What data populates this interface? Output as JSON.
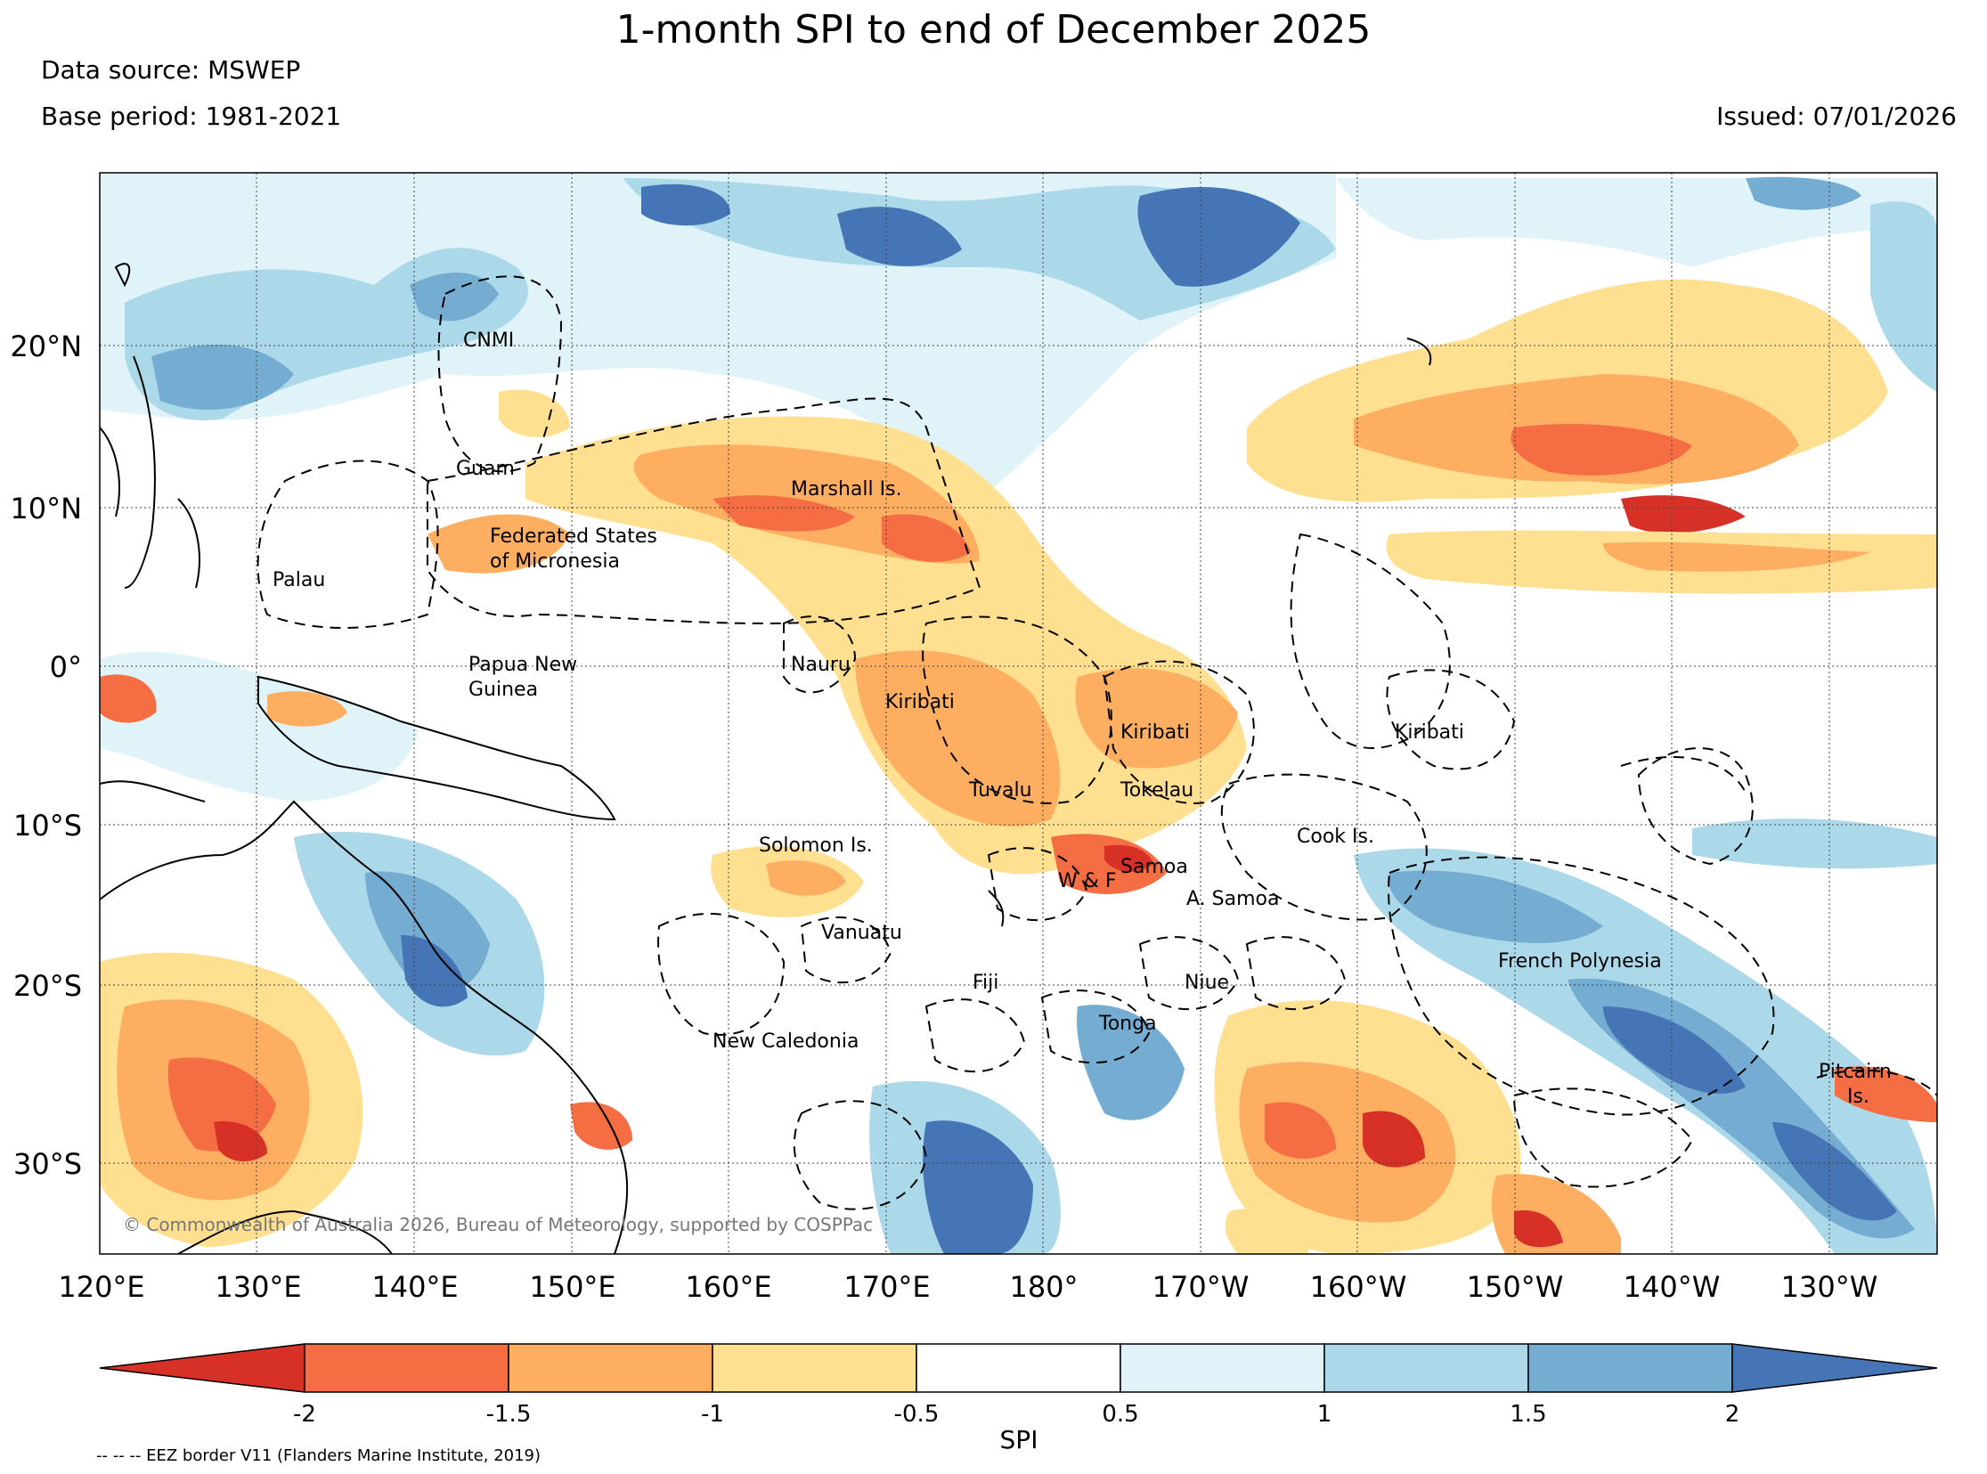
{
  "header": {
    "title": "1-month SPI to end of December 2025",
    "data_source": "Data source: MSWEP",
    "base_period": "Base period: 1981-2021",
    "issued": "Issued: 07/01/2026"
  },
  "map": {
    "lon_labels": [
      "120°E",
      "130°E",
      "140°E",
      "150°E",
      "160°E",
      "170°E",
      "180°",
      "170°W",
      "160°W",
      "150°W",
      "140°W",
      "130°W"
    ],
    "lat_labels": [
      "20°N",
      "10°N",
      "0°",
      "10°S",
      "20°S",
      "30°S"
    ],
    "places": [
      {
        "id": "cnmi",
        "text": "CNMI"
      },
      {
        "id": "guam",
        "text": "Guam"
      },
      {
        "id": "marshall",
        "text": "Marshall Is."
      },
      {
        "id": "fsm1",
        "text": "Federated States"
      },
      {
        "id": "fsm2",
        "text": "of Micronesia"
      },
      {
        "id": "palau",
        "text": "Palau"
      },
      {
        "id": "png1",
        "text": "Papua New"
      },
      {
        "id": "png2",
        "text": "Guinea"
      },
      {
        "id": "nauru",
        "text": "Nauru"
      },
      {
        "id": "kiribati-w",
        "text": "Kiribati"
      },
      {
        "id": "kiribati-c",
        "text": "Kiribati"
      },
      {
        "id": "kiribati-e",
        "text": "Kiribati"
      },
      {
        "id": "tuvalu",
        "text": "Tuvalu"
      },
      {
        "id": "tokelau",
        "text": "Tokelau"
      },
      {
        "id": "solomon",
        "text": "Solomon Is."
      },
      {
        "id": "cook",
        "text": "Cook Is."
      },
      {
        "id": "wf",
        "text": "W & F"
      },
      {
        "id": "samoa",
        "text": "Samoa"
      },
      {
        "id": "asamoa",
        "text": "A. Samoa"
      },
      {
        "id": "vanuatu",
        "text": "Vanuatu"
      },
      {
        "id": "fiji",
        "text": "Fiji"
      },
      {
        "id": "niue",
        "text": "Niue"
      },
      {
        "id": "fp",
        "text": "French Polynesia"
      },
      {
        "id": "tonga",
        "text": "Tonga"
      },
      {
        "id": "nc",
        "text": "New Caledonia"
      },
      {
        "id": "pitcairn1",
        "text": "Pitcairn"
      },
      {
        "id": "pitcairn2",
        "text": "Is."
      }
    ],
    "copyright": "© Commonwealth of Australia 2026, Bureau of Meteorology, supported by COSPPac"
  },
  "colorbar": {
    "label": "SPI",
    "ticks": [
      "-2",
      "-1.5",
      "-1",
      "-0.5",
      "0.5",
      "1",
      "1.5",
      "2"
    ],
    "colors": [
      "#d73027",
      "#f46d43",
      "#fdae61",
      "#fee090",
      "#ffffff",
      "#e0f3f8",
      "#abd9e9",
      "#74add1",
      "#4575b4"
    ]
  },
  "footnote": "-- -- -- EEZ border V11 (Flanders Marine Institute, 2019)"
}
